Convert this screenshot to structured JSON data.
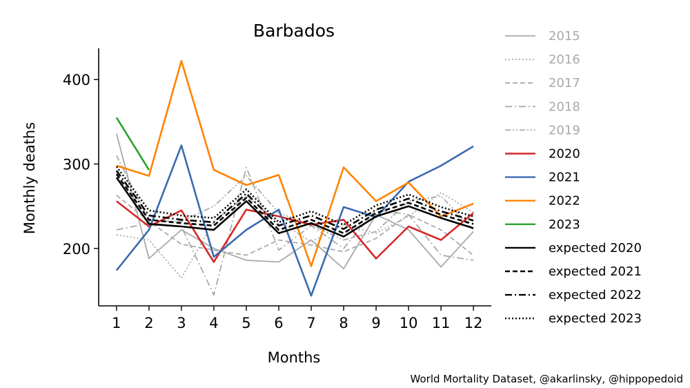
{
  "chart_data": {
    "type": "line",
    "title": "Barbados",
    "xlabel": "Months",
    "ylabel": "Monthly deaths",
    "xlim": [
      0.45,
      12.55
    ],
    "ylim": [
      132,
      437
    ],
    "x_ticks": [
      1,
      2,
      3,
      4,
      5,
      6,
      7,
      8,
      9,
      10,
      11,
      12
    ],
    "y_ticks": [
      200,
      300,
      400
    ],
    "grid": false,
    "legend_position": "right",
    "series": [
      {
        "name": "2015",
        "color": "#a9a9a9",
        "dash": "solid",
        "x": [
          1,
          2,
          3,
          4,
          5,
          6,
          7,
          8,
          9,
          10,
          11,
          12
        ],
        "values": [
          336,
          188,
          222,
          200,
          186,
          184,
          210,
          176,
          240,
          222,
          178,
          220
        ]
      },
      {
        "name": "2016",
        "color": "#a9a9a9",
        "dash": "dotted",
        "x": [
          1,
          2,
          3,
          4,
          5,
          6,
          7,
          8,
          9,
          10,
          11,
          12
        ],
        "values": [
          216,
          210,
          165,
          232,
          262,
          232,
          208,
          228,
          218,
          238,
          266,
          243
        ]
      },
      {
        "name": "2017",
        "color": "#a9a9a9",
        "dash": "dashed",
        "x": [
          1,
          2,
          3,
          4,
          5,
          6,
          7,
          8,
          9,
          10,
          11,
          12
        ],
        "values": [
          263,
          232,
          205,
          198,
          192,
          210,
          204,
          196,
          212,
          240,
          222,
          192
        ]
      },
      {
        "name": "2018",
        "color": "#a9a9a9",
        "dash": "dashdot",
        "x": [
          1,
          2,
          3,
          4,
          5,
          6,
          7,
          8,
          9,
          10,
          11,
          12
        ],
        "values": [
          222,
          230,
          226,
          145,
          296,
          198,
          227,
          200,
          246,
          240,
          192,
          186
        ]
      },
      {
        "name": "2019",
        "color": "#a9a9a9",
        "dash": "dashdotdot",
        "x": [
          1,
          2,
          3,
          4,
          5,
          6,
          7,
          8,
          9,
          10,
          11,
          12
        ],
        "values": [
          310,
          233,
          232,
          250,
          286,
          242,
          228,
          210,
          220,
          256,
          262,
          222
        ]
      },
      {
        "name": "2020",
        "color": "#d62728",
        "dash": "solid",
        "x": [
          1,
          2,
          3,
          4,
          5,
          6,
          7,
          8,
          9,
          10,
          11,
          12
        ],
        "values": [
          256,
          226,
          245,
          184,
          246,
          238,
          228,
          234,
          188,
          226,
          210,
          242
        ]
      },
      {
        "name": "2021",
        "color": "#3a6ab0",
        "dash": "solid",
        "x": [
          1,
          2,
          3,
          4,
          5,
          6,
          7,
          8,
          9,
          10,
          11,
          12
        ],
        "values": [
          174,
          222,
          322,
          190,
          222,
          246,
          144,
          249,
          237,
          279,
          298,
          321
        ]
      },
      {
        "name": "2022",
        "color": "#ff8200",
        "dash": "solid",
        "x": [
          1,
          2,
          3,
          4,
          5,
          6,
          7,
          8,
          9,
          10,
          11,
          12
        ],
        "values": [
          298,
          286,
          422,
          293,
          275,
          287,
          179,
          296,
          256,
          278,
          238,
          253
        ]
      },
      {
        "name": "2023",
        "color": "#2ca02c",
        "dash": "solid",
        "x": [
          1,
          2
        ],
        "values": [
          355,
          293
        ]
      },
      {
        "name": "expected 2020",
        "color": "#000000",
        "dash": "solid",
        "x": [
          1,
          2,
          3,
          4,
          5,
          6,
          7,
          8,
          9,
          10,
          11,
          12
        ],
        "values": [
          284,
          229,
          226,
          222,
          256,
          218,
          230,
          214,
          238,
          250,
          236,
          224
        ]
      },
      {
        "name": "expected 2021",
        "color": "#000000",
        "dash": "dashed",
        "x": [
          1,
          2,
          3,
          4,
          5,
          6,
          7,
          8,
          9,
          10,
          11,
          12
        ],
        "values": [
          288,
          234,
          230,
          227,
          260,
          222,
          234,
          218,
          242,
          254,
          240,
          229
        ]
      },
      {
        "name": "expected 2022",
        "color": "#000000",
        "dash": "dashdot",
        "x": [
          1,
          2,
          3,
          4,
          5,
          6,
          7,
          8,
          9,
          10,
          11,
          12
        ],
        "values": [
          292,
          239,
          234,
          231,
          265,
          227,
          239,
          223,
          246,
          259,
          244,
          233
        ]
      },
      {
        "name": "expected 2023",
        "color": "#000000",
        "dash": "dotted",
        "x": [
          1,
          2,
          3,
          4,
          5,
          6,
          7,
          8,
          9,
          10,
          11,
          12
        ],
        "values": [
          297,
          245,
          239,
          236,
          270,
          231,
          244,
          228,
          251,
          264,
          249,
          238
        ]
      }
    ]
  },
  "credit": "World Mortality Dataset, @akarlinsky, @hippopedoid"
}
